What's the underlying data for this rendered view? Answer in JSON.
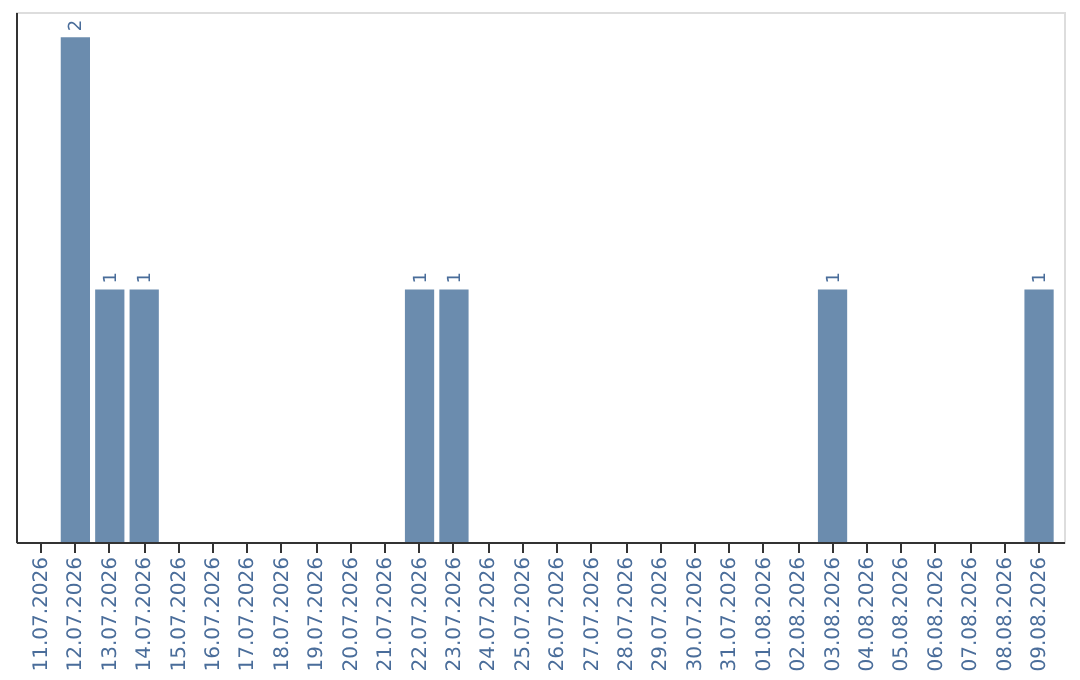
{
  "chart_data": {
    "type": "bar",
    "categories": [
      "11.07.2026",
      "12.07.2026",
      "13.07.2026",
      "14.07.2026",
      "15.07.2026",
      "16.07.2026",
      "17.07.2026",
      "18.07.2026",
      "19.07.2026",
      "20.07.2026",
      "21.07.2026",
      "22.07.2026",
      "23.07.2026",
      "24.07.2026",
      "25.07.2026",
      "26.07.2026",
      "27.07.2026",
      "28.07.2026",
      "29.07.2026",
      "30.07.2026",
      "31.07.2026",
      "01.08.2026",
      "02.08.2026",
      "03.08.2026",
      "04.08.2026",
      "05.08.2026",
      "06.08.2026",
      "07.08.2026",
      "08.08.2026",
      "09.08.2026"
    ],
    "values": [
      0,
      2,
      1,
      1,
      0,
      0,
      0,
      0,
      0,
      0,
      0,
      1,
      1,
      0,
      0,
      0,
      0,
      0,
      0,
      0,
      0,
      0,
      0,
      1,
      0,
      0,
      0,
      0,
      0,
      1
    ],
    "value_labels": [
      null,
      "2",
      "1",
      "1",
      null,
      null,
      null,
      null,
      null,
      null,
      null,
      "1",
      "1",
      null,
      null,
      null,
      null,
      null,
      null,
      null,
      null,
      null,
      null,
      "1",
      null,
      null,
      null,
      null,
      null,
      "1"
    ],
    "color": "#6b8cae",
    "ylim": [
      0,
      2.1
    ],
    "tick_labels": "x"
  }
}
